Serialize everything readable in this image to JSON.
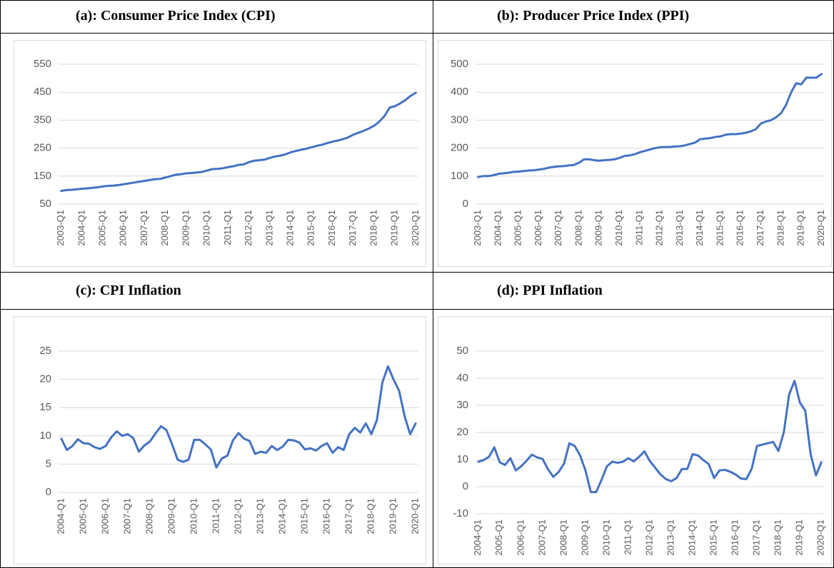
{
  "chart_data": [
    {
      "type": "line",
      "title": "(a): Consumer Price Index (CPI)",
      "color": "#4472c4",
      "grid": true,
      "ylim": [
        50,
        550
      ],
      "yticks": [
        50,
        150,
        250,
        350,
        450,
        550
      ],
      "categories": [
        "2003-Q1",
        null,
        null,
        null,
        "2004-Q1",
        null,
        null,
        null,
        "2005-Q1",
        null,
        null,
        null,
        "2006-Q1",
        null,
        null,
        null,
        "2007-Q1",
        null,
        null,
        null,
        "2008-Q1",
        null,
        null,
        null,
        "2009-Q1",
        null,
        null,
        null,
        "2010-Q1",
        null,
        null,
        null,
        "2011-Q1",
        null,
        null,
        null,
        "2012-Q1",
        null,
        null,
        null,
        "2013-Q1",
        null,
        null,
        null,
        "2014-Q1",
        null,
        null,
        null,
        "2015-Q1",
        null,
        null,
        null,
        "2016-Q1",
        null,
        null,
        null,
        "2017-Q1",
        null,
        null,
        null,
        "2018-Q1",
        null,
        null,
        null,
        "2019-Q1",
        null,
        null,
        null,
        "2020-Q1"
      ],
      "values": [
        97,
        100,
        101,
        103,
        105,
        106,
        108,
        110,
        113,
        115,
        116,
        118,
        121,
        124,
        127,
        130,
        133,
        136,
        139,
        140,
        145,
        150,
        155,
        157,
        160,
        161,
        163,
        165,
        170,
        175,
        176,
        178,
        182,
        185,
        190,
        192,
        200,
        205,
        207,
        209,
        215,
        220,
        223,
        228,
        235,
        240,
        244,
        248,
        253,
        258,
        262,
        268,
        273,
        277,
        282,
        288,
        298,
        305,
        312,
        320,
        330,
        345,
        365,
        395,
        400,
        410,
        422,
        437,
        448
      ]
    },
    {
      "type": "line",
      "title": "(b): Producer Price Index (PPI)",
      "color": "#4472c4",
      "grid": true,
      "ylim": [
        0,
        500
      ],
      "yticks": [
        0,
        100,
        200,
        300,
        400,
        500
      ],
      "categories": [
        "2003-Q1",
        null,
        null,
        null,
        "2004-Q1",
        null,
        null,
        null,
        "2005-Q1",
        null,
        null,
        null,
        "2006-Q1",
        null,
        null,
        null,
        "2007-Q1",
        null,
        null,
        null,
        "2008-Q1",
        null,
        null,
        null,
        "2009-Q1",
        null,
        null,
        null,
        "2010-Q1",
        null,
        null,
        null,
        "2011-Q1",
        null,
        null,
        null,
        "2012-Q1",
        null,
        null,
        null,
        "2013-Q1",
        null,
        null,
        null,
        "2014-Q1",
        null,
        null,
        null,
        "2015-Q1",
        null,
        null,
        null,
        "2016-Q1",
        null,
        null,
        null,
        "2017-Q1",
        null,
        null,
        null,
        "2018-Q1",
        null,
        null,
        null,
        "2019-Q1",
        null,
        null,
        null,
        "2020-Q1"
      ],
      "values": [
        97,
        100,
        100,
        103,
        108,
        110,
        112,
        115,
        116,
        118,
        120,
        121,
        123,
        126,
        130,
        133,
        135,
        136,
        138,
        140,
        148,
        160,
        160,
        157,
        155,
        157,
        158,
        160,
        165,
        172,
        174,
        178,
        185,
        190,
        195,
        200,
        203,
        204,
        204,
        206,
        207,
        210,
        215,
        220,
        232,
        234,
        236,
        240,
        242,
        248,
        250,
        250,
        252,
        255,
        260,
        268,
        288,
        295,
        300,
        310,
        325,
        355,
        400,
        432,
        428,
        452,
        452,
        452,
        465
      ]
    },
    {
      "type": "line",
      "title": "(c): CPI Inflation",
      "color": "#4472c4",
      "grid": true,
      "ylim": [
        0,
        25
      ],
      "yticks": [
        0,
        5,
        10,
        15,
        20,
        25
      ],
      "categories": [
        "2004-Q1",
        null,
        null,
        null,
        "2005-Q1",
        null,
        null,
        null,
        "2006-Q1",
        null,
        null,
        null,
        "2007-Q1",
        null,
        null,
        null,
        "2008-Q1",
        null,
        null,
        null,
        "2009-Q1",
        null,
        null,
        null,
        "2010-Q1",
        null,
        null,
        null,
        "2011-Q1",
        null,
        null,
        null,
        "2012-Q1",
        null,
        null,
        null,
        "2013-Q1",
        null,
        null,
        null,
        "2014-Q1",
        null,
        null,
        null,
        "2015-Q1",
        null,
        null,
        null,
        "2016-Q1",
        null,
        null,
        null,
        "2017-Q1",
        null,
        null,
        null,
        "2018-Q1",
        null,
        null,
        null,
        "2019-Q1",
        null,
        null,
        null,
        "2020-Q1"
      ],
      "values": [
        9.5,
        7.5,
        8.2,
        9.4,
        8.7,
        8.6,
        8.0,
        7.7,
        8.2,
        9.7,
        10.8,
        10.0,
        10.3,
        9.6,
        7.2,
        8.3,
        9.0,
        10.4,
        11.7,
        11.0,
        8.5,
        5.8,
        5.4,
        5.8,
        9.3,
        9.3,
        8.5,
        7.6,
        4.4,
        6.0,
        6.5,
        9.2,
        10.5,
        9.5,
        9.1,
        6.8,
        7.2,
        7.0,
        8.2,
        7.5,
        8.1,
        9.3,
        9.2,
        8.8,
        7.6,
        7.8,
        7.4,
        8.2,
        8.7,
        7.0,
        8.0,
        7.5,
        10.3,
        11.4,
        10.6,
        12.2,
        10.3,
        12.8,
        19.5,
        22.3,
        20.0,
        18.0,
        13.5,
        10.3,
        12.2
      ]
    },
    {
      "type": "line",
      "title": "(d): PPI Inflation",
      "color": "#4472c4",
      "grid": true,
      "ylim": [
        -10,
        50
      ],
      "yticks": [
        -10,
        0,
        10,
        20,
        30,
        40,
        50
      ],
      "categories": [
        "2004-Q1",
        null,
        null,
        null,
        "2005-Q1",
        null,
        null,
        null,
        "2006-Q1",
        null,
        null,
        null,
        "2007-Q1",
        null,
        null,
        null,
        "2008-Q1",
        null,
        null,
        null,
        "2009-Q1",
        null,
        null,
        null,
        "2010-Q1",
        null,
        null,
        null,
        "2011-Q1",
        null,
        null,
        null,
        "2012-Q1",
        null,
        null,
        null,
        "2013-Q1",
        null,
        null,
        null,
        "2014-Q1",
        null,
        null,
        null,
        "2015-Q1",
        null,
        null,
        null,
        "2016-Q1",
        null,
        null,
        null,
        "2017-Q1",
        null,
        null,
        null,
        "2018-Q1",
        null,
        null,
        null,
        "2019-Q1",
        null,
        null,
        null,
        "2020-Q1"
      ],
      "values": [
        9.2,
        9.8,
        11,
        14.5,
        9,
        8,
        10.5,
        6,
        7.5,
        9.5,
        11.8,
        10.8,
        10.2,
        6.5,
        3.6,
        5.4,
        8.5,
        16,
        15,
        11.5,
        6,
        -2,
        -2,
        2.5,
        7.5,
        9.2,
        8.8,
        9.2,
        10.5,
        9.3,
        11,
        13,
        9.5,
        7,
        4.5,
        2.8,
        2,
        3.2,
        6.5,
        6.5,
        12,
        11.5,
        9.8,
        8.3,
        3.2,
        6,
        6.2,
        5.5,
        4.5,
        3,
        2.8,
        6.5,
        15,
        15.5,
        16,
        16.5,
        13.2,
        20,
        34,
        39,
        31,
        28,
        12,
        4.2,
        9
      ]
    }
  ]
}
